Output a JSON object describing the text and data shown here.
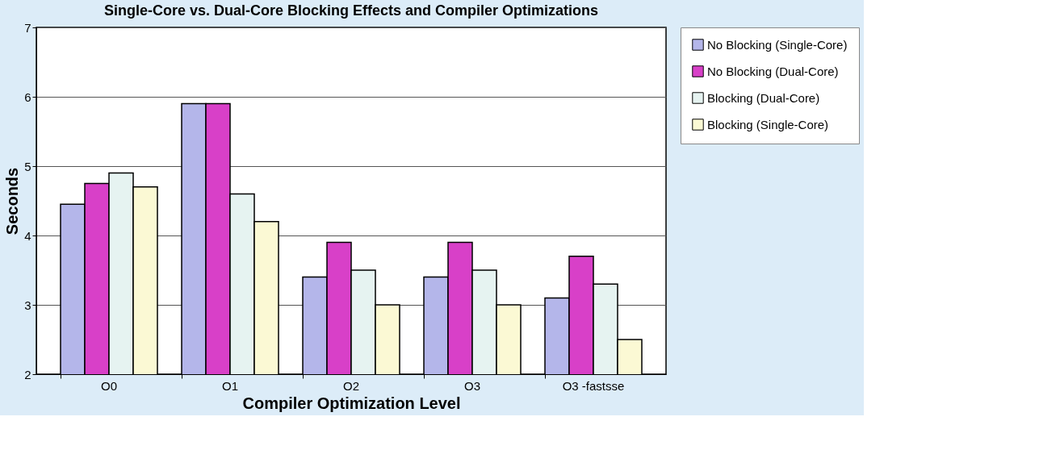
{
  "chart_data": {
    "type": "bar",
    "title": "Single-Core vs. Dual-Core Blocking Effects and Compiler Optimizations",
    "xlabel": "Compiler Optimization Level",
    "ylabel": "Seconds",
    "categories": [
      "O0",
      "O1",
      "O2",
      "O3",
      "O3 -fastsse"
    ],
    "series": [
      {
        "name": "No Blocking (Single-Core)",
        "color": "#b4b6ea",
        "values": [
          4.45,
          5.9,
          3.4,
          3.4,
          3.1
        ]
      },
      {
        "name": "No Blocking (Dual-Core)",
        "color": "#d840c8",
        "values": [
          4.75,
          5.9,
          3.9,
          3.9,
          3.7
        ]
      },
      {
        "name": "Blocking (Dual-Core)",
        "color": "#e6f3f1",
        "values": [
          4.9,
          4.6,
          3.5,
          3.5,
          3.3
        ]
      },
      {
        "name": "Blocking (Single-Core)",
        "color": "#fbf9d4",
        "values": [
          4.7,
          4.2,
          3.0,
          3.0,
          2.5
        ]
      }
    ],
    "ylim": [
      2,
      7
    ],
    "yticks": [
      2,
      3,
      4,
      5,
      6,
      7
    ],
    "grid": "y",
    "legend": "right"
  }
}
